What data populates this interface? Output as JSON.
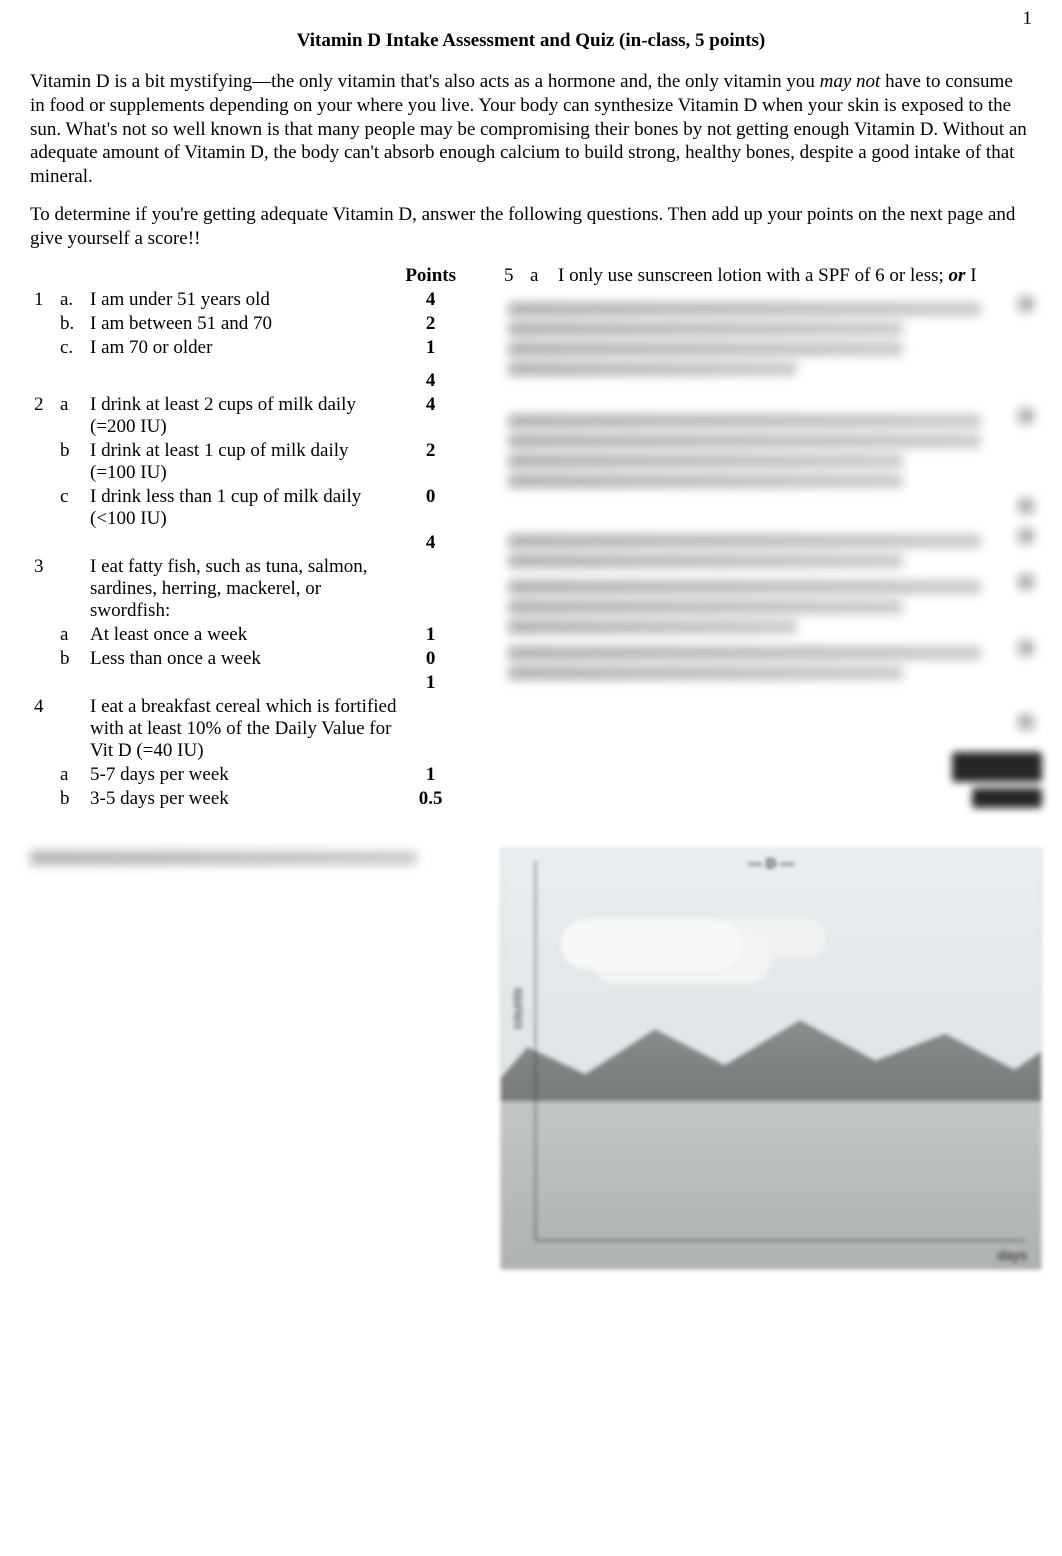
{
  "page_number": "1",
  "title": "Vitamin D Intake Assessment and Quiz (in-class, 5 points)",
  "intro_html": "Vitamin D is a bit mystifying—the only vitamin that's also acts as a hormone and, the only vitamin you <span class=\"italic\">may not</span> have to consume in food or supplements depending on your where you live.  Your body can synthesize Vitamin D when your skin is exposed to the sun.  What's not so well known is that many people may be compromising their bones by not getting enough Vitamin D.  Without an adequate amount of Vitamin D, the body can't absorb enough calcium to build strong, healthy bones, despite a good intake of that mineral.",
  "instructions": "To determine if you're getting adequate Vitamin D, answer the following questions.  Then add up your points on the next page and give yourself a score!!",
  "points_header": "Points",
  "left_questions": [
    {
      "num": "1",
      "options": [
        {
          "letter": "a.",
          "text": "I am under 51 years old",
          "points": "4"
        },
        {
          "letter": "b.",
          "text": "I am between 51 and 70",
          "points": "2"
        },
        {
          "letter": "c.",
          "text": "I am 70 or older",
          "points": "1"
        }
      ],
      "trailing_points": "4"
    },
    {
      "num": "2",
      "options": [
        {
          "letter": "a",
          "text": "I drink at least 2 cups of milk daily (=200 IU)",
          "points": "4"
        },
        {
          "letter": "b",
          "text": "I drink at least 1 cup of milk daily (=100 IU)",
          "points": "2"
        },
        {
          "letter": "c",
          "text": "I drink less than 1 cup of milk daily (<100 IU)",
          "points": "0"
        }
      ],
      "trailing_points": "4"
    },
    {
      "num": "3",
      "intro": "I eat fatty fish, such as tuna, salmon, sardines, herring, mackerel, or swordfish:",
      "options": [
        {
          "letter": "a",
          "text": "At least once a week",
          "points": "1"
        },
        {
          "letter": "b",
          "text": "Less than once a week",
          "points": "0"
        }
      ],
      "trailing_points": "1"
    },
    {
      "num": "4",
      "intro": "I eat a breakfast cereal which is fortified with at least 10% of the Daily Value for Vit D (=40 IU)",
      "options": [
        {
          "letter": "a",
          "text": "5-7 days per week",
          "points": "1"
        },
        {
          "letter": "b",
          "text": "3-5 days per week",
          "points": "0.5"
        }
      ]
    }
  ],
  "right_question": {
    "num": "5",
    "letter": "a",
    "text_prefix": "I only use sunscreen lotion with a SPF of 6 or less; ",
    "text_emph": "or",
    "text_suffix": " I"
  },
  "preview_labels": {
    "y_axis": "counts",
    "title": "— D —",
    "x_right": "days"
  },
  "colors": {
    "text": "#000000",
    "background": "#ffffff",
    "blur_line": "#7a7a7a"
  },
  "typography": {
    "body_font": "Times New Roman",
    "body_size_pt": 12,
    "title_weight": "bold"
  }
}
